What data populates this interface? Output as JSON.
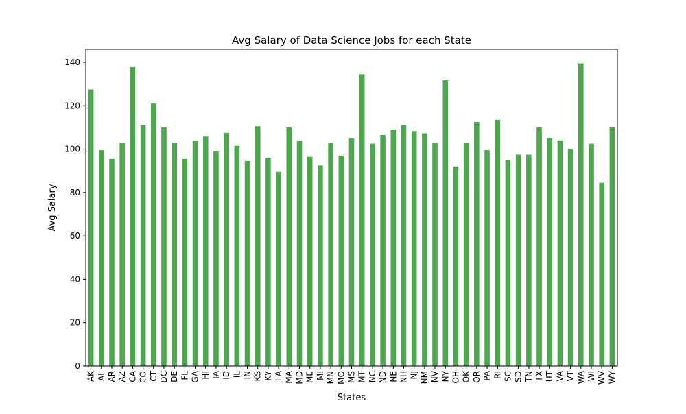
{
  "chart_data": {
    "type": "bar",
    "title": "Avg Salary of Data Science Jobs for each State",
    "xlabel": "States",
    "ylabel": "Avg Salary",
    "ylim": [
      0,
      146
    ],
    "yticks": [
      0,
      20,
      40,
      60,
      80,
      100,
      120,
      140
    ],
    "grid": false,
    "legend": "none",
    "bar_color": "#4ea64e",
    "categories": [
      "AK",
      "AL",
      "AR",
      "AZ",
      "CA",
      "CO",
      "CT",
      "DC",
      "DE",
      "FL",
      "GA",
      "HI",
      "IA",
      "ID",
      "IL",
      "IN",
      "KS",
      "KY",
      "LA",
      "MA",
      "MD",
      "ME",
      "MI",
      "MN",
      "MO",
      "MS",
      "MT",
      "NC",
      "ND",
      "NE",
      "NH",
      "NJ",
      "NM",
      "NV",
      "NY",
      "OH",
      "OK",
      "OR",
      "PA",
      "RI",
      "SC",
      "SD",
      "TN",
      "TX",
      "UT",
      "VA",
      "VT",
      "WA",
      "WI",
      "WV",
      "WY"
    ],
    "values": [
      127.5,
      99.5,
      95.5,
      103.0,
      137.8,
      111.0,
      121.0,
      110.0,
      103.0,
      95.5,
      104.0,
      105.8,
      99.0,
      107.5,
      101.5,
      94.5,
      110.5,
      96.0,
      89.5,
      110.0,
      104.0,
      96.5,
      92.5,
      103.0,
      97.0,
      105.0,
      134.5,
      102.5,
      106.5,
      109.0,
      111.0,
      108.3,
      107.3,
      103.0,
      131.8,
      92.0,
      103.0,
      112.5,
      99.5,
      113.5,
      95.0,
      97.5,
      97.5,
      110.0,
      105.0,
      104.0,
      100.0,
      139.5,
      102.5,
      84.5,
      110.0
    ]
  }
}
